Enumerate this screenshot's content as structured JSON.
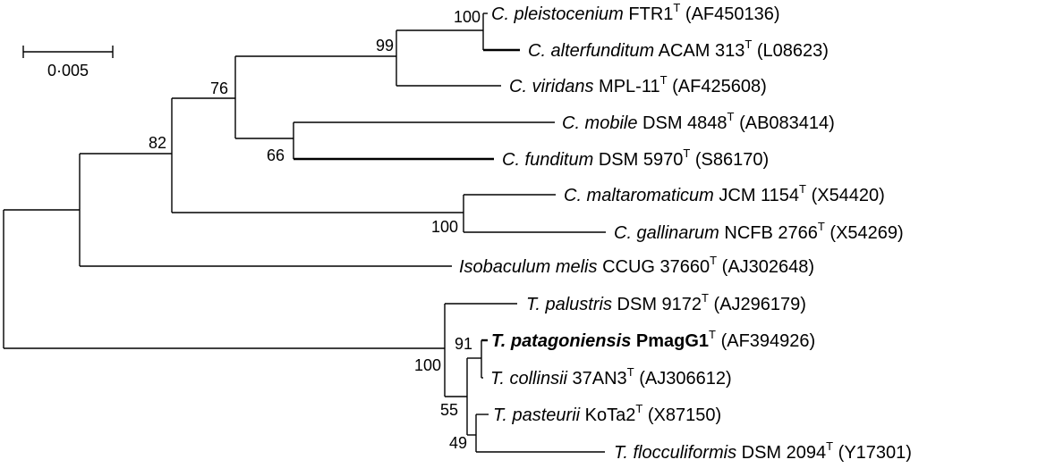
{
  "scale_bar": {
    "label": "0·005"
  },
  "bootstrap": {
    "n100_pleist": "100",
    "n99": "99",
    "n76": "76",
    "n82": "82",
    "n66": "66",
    "n100_carno": "100",
    "n91": "91",
    "n100_trich": "100",
    "n55": "55",
    "n49": "49"
  },
  "taxa": {
    "pleistocenium": {
      "species": "C. pleistocenium",
      "strain": "FTR1",
      "type_mark": "T",
      "accession": "(AF450136)"
    },
    "alterfunditum": {
      "species": "C. alterfunditum",
      "strain": "ACAM 313",
      "type_mark": "T",
      "accession": "(L08623)"
    },
    "viridans": {
      "species": "C. viridans",
      "strain": "MPL-11",
      "type_mark": "T",
      "accession": "(AF425608)"
    },
    "mobile": {
      "species": "C. mobile",
      "strain": "DSM 4848",
      "type_mark": "T",
      "accession": "(AB083414)"
    },
    "funditum": {
      "species": "C. funditum",
      "strain": "DSM 5970",
      "type_mark": "T",
      "accession": "(S86170)"
    },
    "maltaromaticum": {
      "species": "C. maltaromaticum",
      "strain": "JCM 1154",
      "type_mark": "T",
      "accession": "(X54420)"
    },
    "gallinarum": {
      "species": "C. gallinarum",
      "strain": "NCFB 2766",
      "type_mark": "T",
      "accession": "(X54269)"
    },
    "isobaculum": {
      "species": "Isobaculum melis",
      "strain": "CCUG 37660",
      "type_mark": "T",
      "accession": "(AJ302648)"
    },
    "palustris": {
      "species": "T. palustris",
      "strain": "DSM 9172",
      "type_mark": "T",
      "accession": "(AJ296179)"
    },
    "patagoniensis": {
      "species": "T. patagoniensis",
      "strain": "PmagG1",
      "type_mark": "T",
      "accession": "(AF394926)"
    },
    "collinsii": {
      "species": "T. collinsii",
      "strain": "37AN3",
      "type_mark": "T",
      "accession": "(AJ306612)"
    },
    "pasteurii": {
      "species": "T. pasteurii",
      "strain": "KoTa2",
      "type_mark": "T",
      "accession": "(X87150)"
    },
    "flocculiformis": {
      "species": "T. flocculiformis",
      "strain": "DSM 2094",
      "type_mark": "T",
      "accession": "(Y17301)"
    }
  }
}
